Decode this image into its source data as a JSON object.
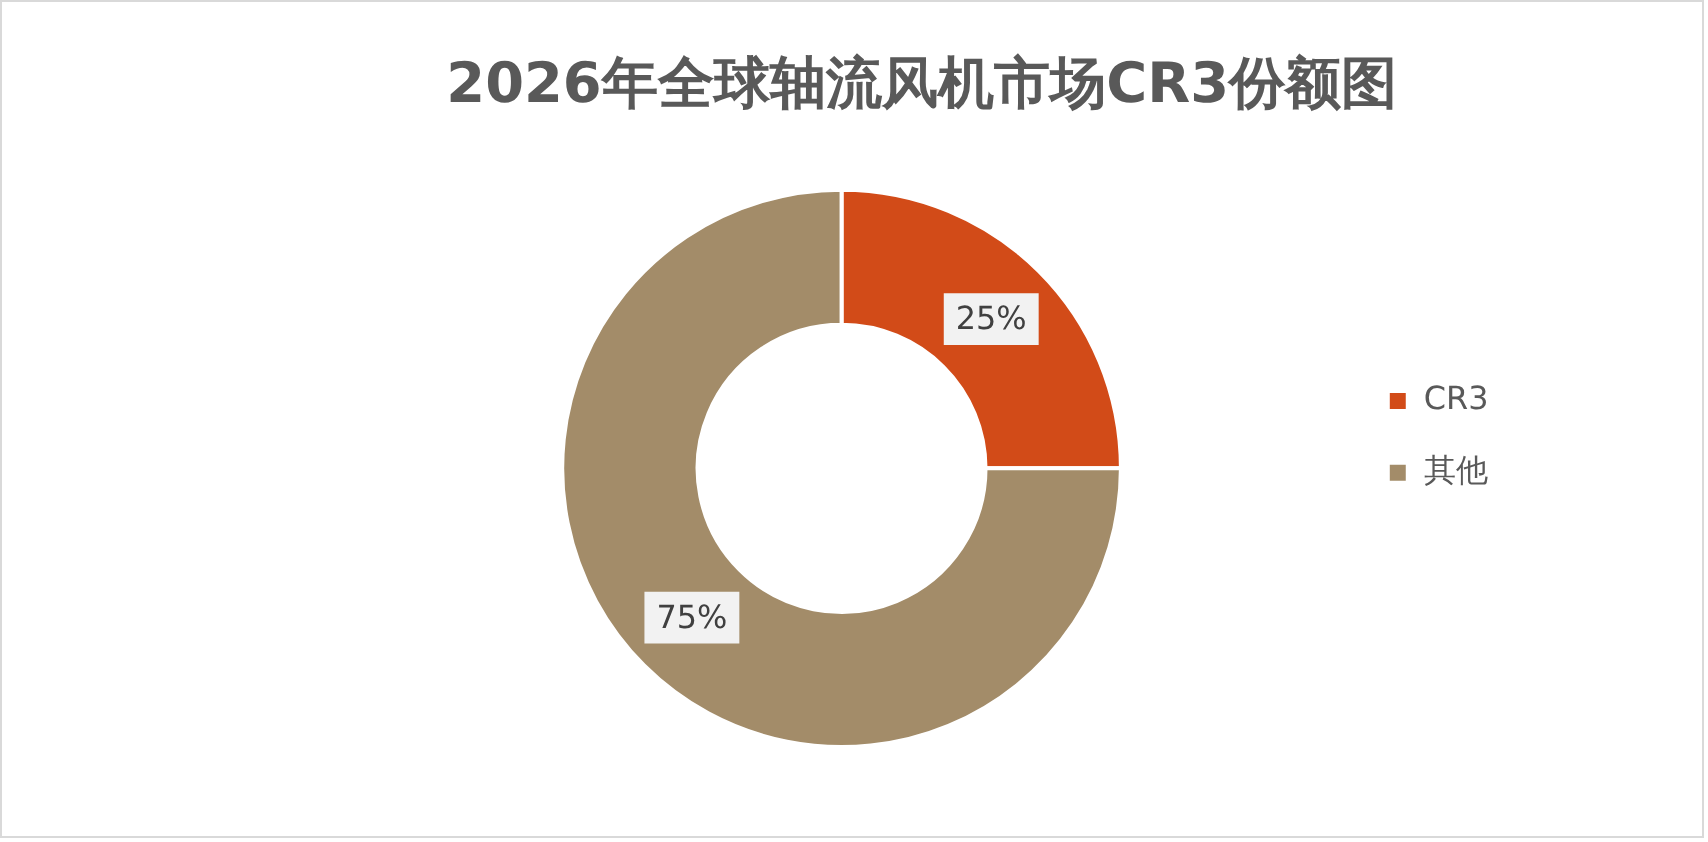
{
  "chart_data": {
    "type": "donut",
    "title": "2026年全球轴流风机市场CR3份额图",
    "categories": [
      "CR3",
      "其他"
    ],
    "values": [
      25,
      75
    ],
    "colors": [
      "#d24b18",
      "#a38c69"
    ],
    "value_labels": [
      "25%",
      "75%"
    ],
    "legend": "right"
  }
}
